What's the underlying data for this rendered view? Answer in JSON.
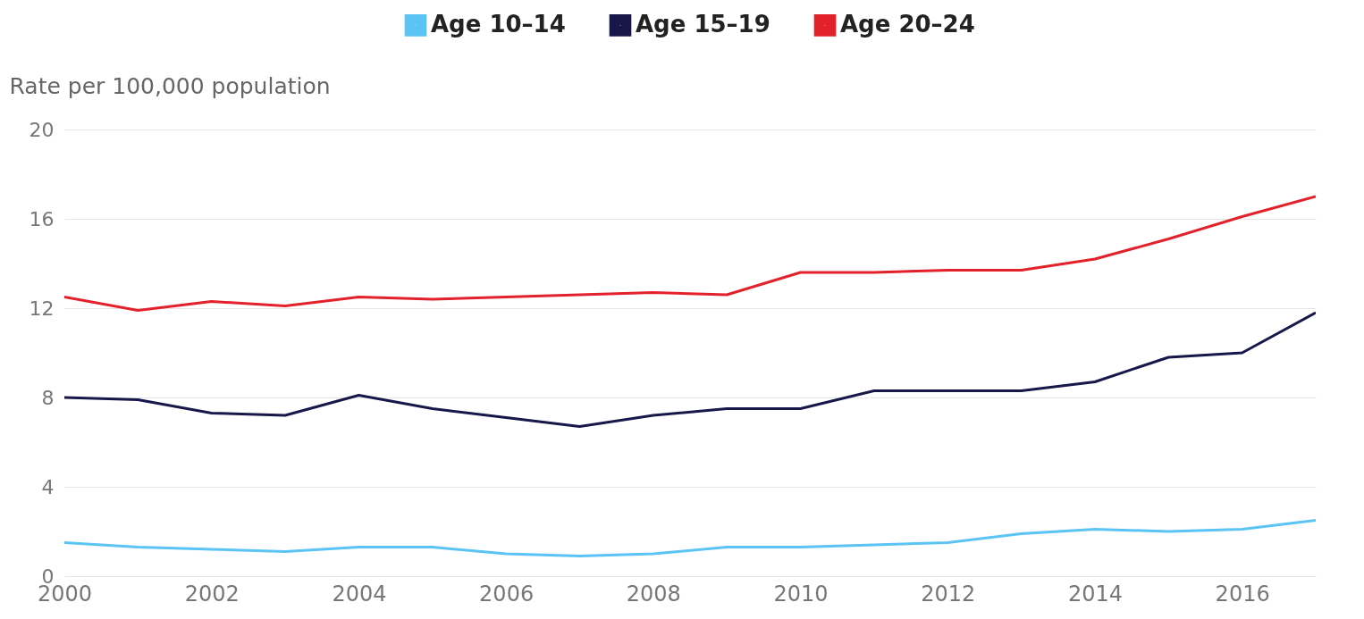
{
  "chart_data": {
    "type": "line",
    "ylabel": "Rate per 100,000 population",
    "x": [
      2000,
      2001,
      2002,
      2003,
      2004,
      2005,
      2006,
      2007,
      2008,
      2009,
      2010,
      2011,
      2012,
      2013,
      2014,
      2015,
      2016,
      2017
    ],
    "xlim": [
      2000,
      2017
    ],
    "xticks": [
      2000,
      2002,
      2004,
      2006,
      2008,
      2010,
      2012,
      2014,
      2016
    ],
    "ylim": [
      0,
      20
    ],
    "yticks": [
      0,
      4,
      8,
      12,
      16,
      20
    ],
    "grid": "y",
    "legend": "top",
    "series": [
      {
        "name": "Age 10–14",
        "color": "#5bc4f5",
        "values": [
          1.5,
          1.3,
          1.2,
          1.1,
          1.3,
          1.3,
          1.0,
          0.9,
          1.0,
          1.3,
          1.3,
          1.4,
          1.5,
          1.9,
          2.1,
          2.0,
          2.1,
          2.5
        ]
      },
      {
        "name": "Age 15–19",
        "color": "#17174a",
        "values": [
          8.0,
          7.9,
          7.3,
          7.2,
          8.1,
          7.5,
          7.1,
          6.7,
          7.2,
          7.5,
          7.5,
          8.3,
          8.3,
          8.3,
          8.7,
          9.8,
          10.0,
          11.8
        ]
      },
      {
        "name": "Age 20–24",
        "color": "#e3212b",
        "values": [
          12.5,
          11.9,
          12.3,
          12.1,
          12.5,
          12.4,
          12.5,
          12.6,
          12.7,
          12.6,
          13.6,
          13.6,
          13.7,
          13.7,
          14.2,
          15.1,
          16.1,
          17.0
        ]
      }
    ]
  }
}
